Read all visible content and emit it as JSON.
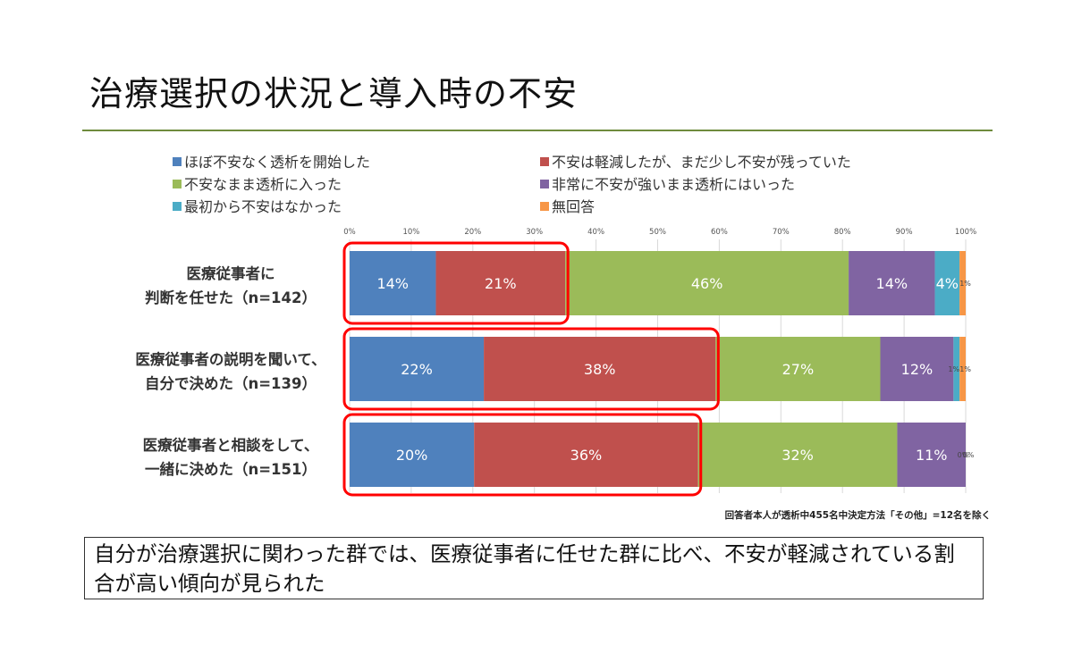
{
  "page": {
    "title": "治療選択の状況と導入時の不安",
    "footnote": "回答者本人が透析中455名中決定方法「その他」=12名を除く",
    "conclusion": "自分が治療選択に関わった群では、医療従事者に任せた群に比べ、不安が軽減されている割合が高い傾向が見られた"
  },
  "chart_data": {
    "type": "bar",
    "orientation": "horizontal",
    "stacked": "percent",
    "categories": [
      [
        "医療従事者に",
        "判断を任せた（n=142）"
      ],
      [
        "医療従事者の説明を聞いて、",
        "自分で決めた（n=139）"
      ],
      [
        "医療従事者と相談をして、",
        "一緒に決めた（n=151）"
      ]
    ],
    "series": [
      {
        "name": "ほぼ不安なく透析を開始した",
        "color": "#4f81bd",
        "values": [
          14,
          22,
          20
        ],
        "labels": [
          "14%",
          "22%",
          "20%"
        ]
      },
      {
        "name": "不安は軽減したが、まだ少し不安が残っていた",
        "color": "#c0504d",
        "values": [
          21,
          38,
          36
        ],
        "labels": [
          "21%",
          "38%",
          "36%"
        ]
      },
      {
        "name": "不安なまま透析に入った",
        "color": "#9bbb59",
        "values": [
          46,
          27,
          32
        ],
        "labels": [
          "46%",
          "27%",
          "32%"
        ]
      },
      {
        "name": "非常に不安が強いまま透析にはいった",
        "color": "#8064a2",
        "values": [
          14,
          12,
          11
        ],
        "labels": [
          "14%",
          "12%",
          "11%"
        ]
      },
      {
        "name": "最初から不安はなかった",
        "color": "#4bacc6",
        "values": [
          4,
          1,
          0
        ],
        "labels": [
          "4%",
          "1%",
          "0%"
        ]
      },
      {
        "name": "無回答",
        "color": "#f79646",
        "values": [
          1,
          1,
          0
        ],
        "labels": [
          "1%",
          "1%",
          "0%"
        ]
      }
    ],
    "xlim": [
      0,
      100
    ],
    "xticks": [
      "0%",
      "10%",
      "20%",
      "30%",
      "40%",
      "50%",
      "60%",
      "70%",
      "80%",
      "90%",
      "100%"
    ],
    "grid": true,
    "legend_position": "top",
    "highlight": {
      "color": "#ff0000",
      "series_covered": 2,
      "description": "first two series outlined per row"
    }
  }
}
